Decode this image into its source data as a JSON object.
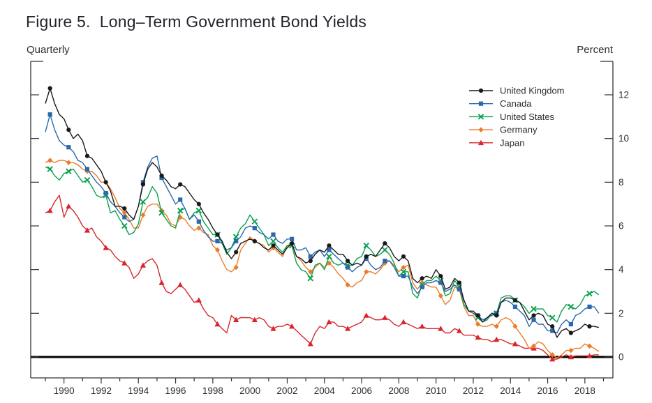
{
  "figure": {
    "title": "Figure 5.  Long–Term Government Bond Yields",
    "left_caption": "Quarterly",
    "right_caption": "Percent"
  },
  "chart_data": {
    "type": "line",
    "title": "Figure 5.  Long–Term Government Bond Yields",
    "xlabel": "Quarterly",
    "ylabel": "Percent",
    "frequency": "quarterly",
    "x_start_year": 1989,
    "x_end_year": 2019,
    "x_labeled_years": [
      1990,
      1992,
      1994,
      1996,
      1998,
      2000,
      2002,
      2004,
      2006,
      2008,
      2010,
      2012,
      2014,
      2016,
      2018
    ],
    "yticks": [
      0,
      2,
      4,
      6,
      8,
      10,
      12
    ],
    "ylim": [
      -1.0,
      13.5
    ],
    "grid": false,
    "zero_line": true,
    "legend_position": "top-right-inside",
    "axis_color": "#333333",
    "series": [
      {
        "name": "United Kingdom",
        "color": "#1a1a1a",
        "marker": "circle",
        "values": [
          11.6,
          12.3,
          11.6,
          11.1,
          10.9,
          10.4,
          10.0,
          10.2,
          9.9,
          9.2,
          9.1,
          8.8,
          8.5,
          8.0,
          7.6,
          6.9,
          6.9,
          6.8,
          6.5,
          6.3,
          6.9,
          7.9,
          8.6,
          8.9,
          8.7,
          8.3,
          8.1,
          7.8,
          7.7,
          7.9,
          7.8,
          7.5,
          7.2,
          7.0,
          6.6,
          6.3,
          5.9,
          5.6,
          5.3,
          4.8,
          4.5,
          4.8,
          5.2,
          5.3,
          5.4,
          5.3,
          5.2,
          5.0,
          4.9,
          5.1,
          4.9,
          4.7,
          5.0,
          5.2,
          4.6,
          4.5,
          4.3,
          4.4,
          4.7,
          4.9,
          4.8,
          5.1,
          4.9,
          4.7,
          4.7,
          4.4,
          4.2,
          4.3,
          4.2,
          4.6,
          4.7,
          4.6,
          4.9,
          5.2,
          5.0,
          4.6,
          4.4,
          4.6,
          4.4,
          3.6,
          3.4,
          3.6,
          3.7,
          3.6,
          4.0,
          3.7,
          3.1,
          3.2,
          3.6,
          3.4,
          2.6,
          2.1,
          2.1,
          1.9,
          1.6,
          1.8,
          2.0,
          1.9,
          2.5,
          2.7,
          2.7,
          2.6,
          2.5,
          2.1,
          1.7,
          1.9,
          2.0,
          1.9,
          1.5,
          1.4,
          0.9,
          1.2,
          1.3,
          1.1,
          1.2,
          1.3,
          1.5,
          1.4,
          1.4,
          1.35
        ]
      },
      {
        "name": "Canada",
        "color": "#2a69ac",
        "marker": "square",
        "values": [
          10.3,
          11.1,
          10.4,
          9.9,
          9.7,
          9.6,
          9.4,
          9.0,
          8.9,
          8.6,
          8.3,
          8.0,
          7.8,
          7.5,
          7.1,
          6.9,
          6.6,
          6.4,
          6.2,
          6.3,
          6.9,
          8.0,
          8.7,
          9.1,
          9.2,
          8.2,
          7.8,
          7.4,
          7.0,
          7.2,
          6.8,
          6.3,
          6.5,
          6.2,
          5.8,
          5.5,
          5.3,
          5.3,
          5.2,
          4.9,
          5.0,
          5.3,
          5.5,
          5.9,
          6.0,
          5.9,
          5.7,
          5.6,
          5.4,
          5.6,
          5.3,
          5.2,
          5.4,
          5.4,
          4.9,
          4.9,
          5.0,
          4.6,
          4.8,
          4.9,
          4.6,
          4.9,
          4.7,
          4.5,
          4.3,
          4.1,
          3.9,
          4.1,
          4.2,
          4.5,
          4.2,
          4.0,
          4.1,
          4.4,
          4.4,
          4.1,
          3.7,
          3.7,
          3.7,
          3.2,
          2.9,
          3.2,
          3.4,
          3.4,
          3.5,
          3.4,
          3.0,
          3.1,
          3.3,
          3.1,
          2.6,
          2.1,
          2.0,
          1.9,
          1.7,
          1.8,
          1.9,
          2.0,
          2.5,
          2.6,
          2.5,
          2.3,
          2.1,
          1.9,
          1.4,
          1.7,
          1.5,
          1.5,
          1.2,
          1.2,
          1.1,
          1.5,
          1.7,
          1.5,
          1.9,
          2.0,
          2.2,
          2.3,
          2.3,
          2.0
        ]
      },
      {
        "name": "United States",
        "color": "#0aa14f",
        "marker": "x",
        "values": [
          8.7,
          8.6,
          8.3,
          8.1,
          8.4,
          8.5,
          8.6,
          8.3,
          8.0,
          8.1,
          7.8,
          7.4,
          7.3,
          7.4,
          6.6,
          6.7,
          6.3,
          6.0,
          5.6,
          5.7,
          6.1,
          7.1,
          7.3,
          7.8,
          7.5,
          6.6,
          6.3,
          6.0,
          5.9,
          6.7,
          6.8,
          6.3,
          6.6,
          6.7,
          6.2,
          5.9,
          5.6,
          5.6,
          5.2,
          4.7,
          5.0,
          5.5,
          5.9,
          6.1,
          6.5,
          6.2,
          5.9,
          5.6,
          5.1,
          5.3,
          5.0,
          4.8,
          5.1,
          5.1,
          4.3,
          4.0,
          3.9,
          3.6,
          4.2,
          4.3,
          4.0,
          4.6,
          4.3,
          4.2,
          4.3,
          4.2,
          4.2,
          4.5,
          4.6,
          5.1,
          4.9,
          4.6,
          4.7,
          4.9,
          4.7,
          4.3,
          3.7,
          3.9,
          3.9,
          2.9,
          2.7,
          3.3,
          3.5,
          3.5,
          3.7,
          3.5,
          2.8,
          2.9,
          3.5,
          3.2,
          2.4,
          2.1,
          2.0,
          1.8,
          1.6,
          1.7,
          2.0,
          2.0,
          2.7,
          2.8,
          2.8,
          2.6,
          2.5,
          2.3,
          2.0,
          2.2,
          2.2,
          2.2,
          1.9,
          1.8,
          1.6,
          2.1,
          2.4,
          2.3,
          2.2,
          2.4,
          2.8,
          2.9,
          3.0,
          2.85
        ]
      },
      {
        "name": "Germany",
        "color": "#ec7b28",
        "marker": "diamond",
        "values": [
          8.9,
          9.0,
          8.9,
          9.0,
          9.0,
          8.9,
          8.9,
          8.8,
          8.6,
          8.5,
          8.5,
          8.3,
          8.0,
          8.0,
          7.7,
          7.3,
          6.8,
          6.6,
          6.3,
          5.9,
          5.9,
          6.5,
          6.9,
          7.0,
          7.0,
          6.7,
          6.5,
          6.1,
          6.0,
          6.4,
          6.3,
          6.0,
          5.8,
          5.9,
          5.7,
          5.6,
          5.1,
          4.9,
          4.4,
          4.0,
          3.9,
          4.1,
          4.9,
          5.2,
          5.5,
          5.3,
          5.2,
          5.1,
          4.8,
          5.0,
          4.8,
          4.6,
          5.1,
          5.2,
          4.6,
          4.4,
          4.1,
          3.9,
          4.1,
          4.3,
          4.1,
          4.3,
          4.1,
          3.8,
          3.6,
          3.3,
          3.2,
          3.4,
          3.5,
          3.9,
          3.9,
          3.8,
          4.0,
          4.3,
          4.4,
          4.2,
          3.9,
          4.1,
          4.2,
          3.4,
          3.1,
          3.4,
          3.3,
          3.2,
          3.2,
          2.8,
          2.4,
          2.6,
          3.2,
          3.1,
          2.3,
          1.9,
          1.9,
          1.5,
          1.4,
          1.4,
          1.5,
          1.4,
          1.7,
          1.8,
          1.7,
          1.4,
          1.1,
          0.8,
          0.4,
          0.5,
          0.7,
          0.6,
          0.3,
          0.1,
          -0.05,
          0.1,
          0.3,
          0.3,
          0.4,
          0.4,
          0.6,
          0.5,
          0.4,
          0.25
        ]
      },
      {
        "name": "Japan",
        "color": "#d8262c",
        "marker": "triangle",
        "values": [
          6.6,
          6.7,
          7.1,
          7.4,
          6.4,
          6.9,
          6.7,
          6.4,
          6.0,
          5.8,
          5.9,
          5.5,
          5.3,
          5.0,
          4.9,
          4.6,
          4.4,
          4.3,
          4.1,
          3.6,
          3.8,
          4.2,
          4.4,
          4.5,
          4.2,
          3.4,
          3.0,
          2.9,
          3.1,
          3.3,
          3.1,
          2.8,
          2.5,
          2.6,
          2.2,
          1.9,
          1.8,
          1.5,
          1.3,
          1.1,
          1.9,
          1.7,
          1.8,
          1.8,
          1.8,
          1.7,
          1.8,
          1.7,
          1.4,
          1.3,
          1.4,
          1.4,
          1.5,
          1.4,
          1.2,
          1.0,
          0.8,
          0.6,
          1.1,
          1.4,
          1.3,
          1.6,
          1.6,
          1.4,
          1.4,
          1.3,
          1.4,
          1.5,
          1.6,
          1.9,
          1.8,
          1.7,
          1.7,
          1.8,
          1.7,
          1.5,
          1.4,
          1.6,
          1.5,
          1.4,
          1.3,
          1.4,
          1.3,
          1.3,
          1.3,
          1.3,
          1.1,
          1.1,
          1.3,
          1.2,
          1.0,
          1.0,
          1.0,
          0.9,
          0.8,
          0.8,
          0.7,
          0.8,
          0.8,
          0.7,
          0.6,
          0.6,
          0.5,
          0.4,
          0.4,
          0.4,
          0.4,
          0.3,
          0.1,
          -0.1,
          -0.1,
          0.0,
          0.1,
          0.0,
          0.05,
          0.05,
          0.05,
          0.05,
          0.1,
          0.1
        ]
      }
    ]
  }
}
